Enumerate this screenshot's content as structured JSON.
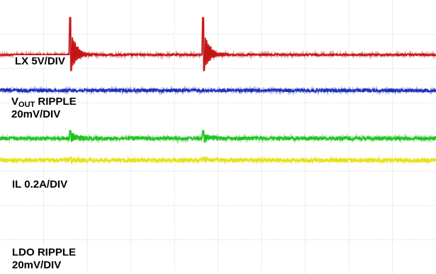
{
  "chart_data": {
    "type": "line",
    "title": "",
    "xlabel": "",
    "ylabel": "",
    "grid": true,
    "divisions": {
      "x": 10,
      "y": 8
    },
    "background": "#ffffff",
    "grid_color": "#c8c8c8",
    "series": [
      {
        "name": "LX 5V/DIV",
        "color": "#c41414",
        "baseline_div": 1.6,
        "noise_div": 0.03,
        "events_div": [
          1.6,
          4.65
        ],
        "peak_div": 1.08,
        "ring_div": 0.38
      },
      {
        "name_parts": {
          "prefix": "V",
          "sub": "OUT",
          "suffix": " RIPPLE"
        },
        "name_line2": "20mV/DIV",
        "color": "#1a2fb8",
        "baseline_div": 2.64,
        "noise_div": 0.045,
        "events_div": [],
        "peak_div": 0,
        "ring_div": 0
      },
      {
        "name": "IL 0.2A/DIV",
        "color": "#1ec41e",
        "baseline_div": 4.04,
        "noise_div": 0.05,
        "events_div": [
          1.6,
          4.65
        ],
        "peak_div": 0.22,
        "ring_div": 0.1
      },
      {
        "name_line1": "LDO RIPPLE",
        "name_line2": "20mV/DIV",
        "color": "#e8e01a",
        "baseline_div": 4.68,
        "noise_div": 0.055,
        "events_div": [
          1.6,
          4.65
        ],
        "peak_div": 0.08,
        "ring_div": 0.04
      }
    ]
  }
}
